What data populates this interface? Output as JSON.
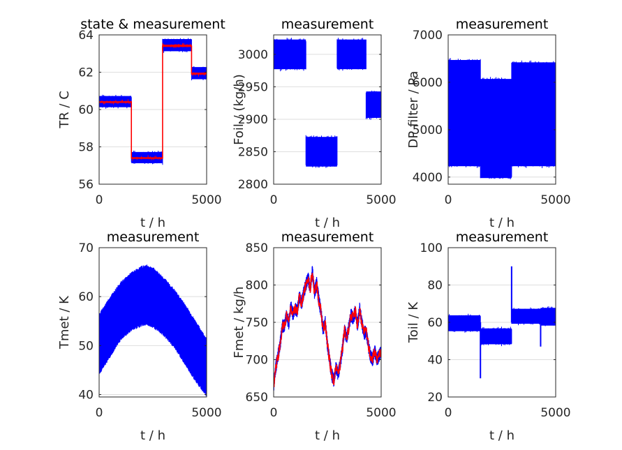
{
  "colors": {
    "measurement": "#0000ff",
    "state": "#ff0000",
    "grid": "#dedede",
    "axis": "#262626"
  },
  "chart_data": [
    {
      "type": "line",
      "title": "state & measurement",
      "xlabel": "t / h",
      "ylabel": "TR / C",
      "xlim": [
        0,
        5000
      ],
      "ylim": [
        56,
        64
      ],
      "xticks": [
        "0",
        "5000"
      ],
      "yticks": [
        "56",
        "58",
        "60",
        "62",
        "64"
      ],
      "grid": true,
      "band_series": [
        {
          "color": "#0000ff",
          "segments": [
            {
              "x": [
                0,
                1500
              ],
              "low": 60.05,
              "high": 60.8
            },
            {
              "x": [
                1500,
                2950
              ],
              "low": 57.05,
              "high": 57.8
            },
            {
              "x": [
                2950,
                4300
              ],
              "low": 63.05,
              "high": 63.85
            },
            {
              "x": [
                4300,
                5000
              ],
              "low": 61.55,
              "high": 62.35
            }
          ]
        },
        {
          "color": "#ff0000",
          "segments": [
            {
              "x": [
                0,
                1500
              ],
              "low": 60.28,
              "high": 60.52
            },
            {
              "x": [
                1500,
                2950
              ],
              "low": 57.28,
              "high": 57.52
            },
            {
              "x": [
                2950,
                4300
              ],
              "low": 63.28,
              "high": 63.55
            },
            {
              "x": [
                4300,
                5000
              ],
              "low": 61.8,
              "high": 62.05
            }
          ]
        }
      ],
      "series": [
        {
          "role": "state",
          "color": "#ff0000",
          "x": [
            0,
            1500,
            1500,
            2950,
            2950,
            4300,
            4300,
            5000
          ],
          "y": [
            60.4,
            60.4,
            57.4,
            57.4,
            63.4,
            63.4,
            61.9,
            61.9
          ]
        }
      ]
    },
    {
      "type": "line",
      "title": "measurement",
      "xlabel": "t / h",
      "ylabel": "Foil / (kg/h)",
      "xlim": [
        0,
        5000
      ],
      "ylim": [
        2800,
        3030
      ],
      "xticks": [
        "0",
        "5000"
      ],
      "yticks": [
        "2800",
        "2850",
        "2900",
        "2950",
        "3000"
      ],
      "ytick_values": [
        2800,
        2850,
        2900,
        2950,
        3000
      ],
      "grid": true,
      "band_series": [
        {
          "color": "#0000ff",
          "segments": [
            {
              "x": [
                0,
                1500
              ],
              "low": 2975,
              "high": 3025
            },
            {
              "x": [
                1500,
                2950
              ],
              "low": 2825,
              "high": 2875
            },
            {
              "x": [
                2950,
                4300
              ],
              "low": 2975,
              "high": 3025
            },
            {
              "x": [
                4300,
                5000
              ],
              "low": 2900,
              "high": 2945
            }
          ]
        }
      ]
    },
    {
      "type": "line",
      "title": "measurement",
      "xlabel": "t / h",
      "ylabel": "DP filter / Pa",
      "xlim": [
        0,
        5000
      ],
      "ylim": [
        3850,
        7000
      ],
      "xticks": [
        "0",
        "5000"
      ],
      "yticks": [
        "4000",
        "5000",
        "6000",
        "7000"
      ],
      "ytick_values": [
        4000,
        5000,
        6000,
        7000
      ],
      "grid": true,
      "band_series": [
        {
          "color": "#0000ff",
          "segments": [
            {
              "x": [
                0,
                1500
              ],
              "low": 4200,
              "high": 6500
            },
            {
              "x": [
                1500,
                2950
              ],
              "low": 3950,
              "high": 6100
            },
            {
              "x": [
                2950,
                5000
              ],
              "low": 4200,
              "high": 6450
            }
          ]
        }
      ]
    },
    {
      "type": "line",
      "title": "measurement",
      "xlabel": "t / h",
      "ylabel": "Tmet / K",
      "xlim": [
        0,
        5000
      ],
      "ylim": [
        39.5,
        70
      ],
      "xticks": [
        "0",
        "5000"
      ],
      "yticks": [
        "40",
        "50",
        "60",
        "70"
      ],
      "ytick_values": [
        40,
        50,
        60,
        70
      ],
      "grid": true,
      "envelope": {
        "color": "#0000ff",
        "x": [
          0,
          500,
          1000,
          1500,
          2000,
          2200,
          2500,
          3000,
          3500,
          4000,
          4500,
          5000
        ],
        "upper": [
          56,
          59.5,
          62.5,
          64.5,
          65.8,
          66,
          65.5,
          63.5,
          61,
          58,
          54.5,
          51
        ],
        "lower": [
          44.5,
          48,
          51.5,
          53.5,
          54.5,
          54.7,
          54.2,
          52.5,
          50,
          46.5,
          43,
          40
        ]
      }
    },
    {
      "type": "line",
      "title": "measurement",
      "xlabel": "t / h",
      "ylabel": "Fmet / kg/h",
      "xlim": [
        0,
        5000
      ],
      "ylim": [
        650,
        850
      ],
      "xticks": [
        "0",
        "5000"
      ],
      "yticks": [
        "650",
        "700",
        "750",
        "800",
        "850"
      ],
      "ytick_values": [
        650,
        700,
        750,
        800,
        850
      ],
      "grid": true,
      "series": [
        {
          "role": "state",
          "color": "#ff0000",
          "x": [
            0,
            100,
            200,
            300,
            400,
            500,
            600,
            700,
            800,
            900,
            1000,
            1100,
            1200,
            1300,
            1400,
            1500,
            1600,
            1700,
            1800,
            1900,
            2000,
            2100,
            2200,
            2300,
            2400,
            2500,
            2600,
            2700,
            2800,
            2900,
            3000,
            3100,
            3200,
            3300,
            3400,
            3500,
            3600,
            3700,
            3800,
            3900,
            4000,
            4100,
            4200,
            4300,
            4400,
            4500,
            4600,
            4700,
            4800,
            4900,
            5000
          ],
          "y": [
            665,
            690,
            705,
            720,
            745,
            745,
            760,
            748,
            772,
            760,
            768,
            765,
            785,
            775,
            790,
            800,
            810,
            795,
            818,
            790,
            802,
            780,
            765,
            740,
            750,
            720,
            700,
            680,
            672,
            690,
            680,
            695,
            715,
            740,
            728,
            745,
            760,
            755,
            765,
            745,
            768,
            750,
            735,
            738,
            720,
            705,
            700,
            712,
            700,
            705,
            712
          ]
        }
      ]
    },
    {
      "type": "line",
      "title": "measurement",
      "xlabel": "t / h",
      "ylabel": "Toil / K",
      "xlim": [
        0,
        5000
      ],
      "ylim": [
        20,
        100
      ],
      "xticks": [
        "0",
        "5000"
      ],
      "yticks": [
        "20",
        "40",
        "60",
        "80",
        "100"
      ],
      "ytick_values": [
        20,
        40,
        60,
        80,
        100
      ],
      "grid": true,
      "band_series": [
        {
          "color": "#0000ff",
          "segments": [
            {
              "x": [
                0,
                1500
              ],
              "low": 54.5,
              "high": 64.5
            },
            {
              "x": [
                1500,
                2950
              ],
              "low": 47.5,
              "high": 57.5
            },
            {
              "x": [
                2950,
                4300
              ],
              "low": 58.5,
              "high": 68
            },
            {
              "x": [
                4300,
                5000
              ],
              "low": 57.5,
              "high": 68.5
            }
          ]
        }
      ],
      "spikes": [
        {
          "x": 1500,
          "y": 30
        },
        {
          "x": 2950,
          "y": 90
        },
        {
          "x": 4300,
          "y": 47
        }
      ]
    }
  ]
}
